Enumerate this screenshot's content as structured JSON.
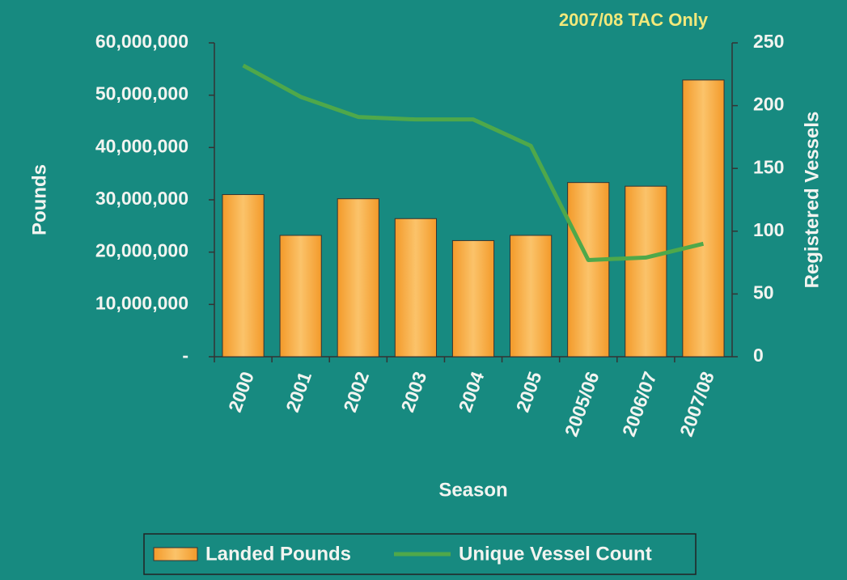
{
  "chart_data": {
    "type": "bar_line",
    "annotation": "2007/08 TAC Only",
    "ylabel": "Pounds",
    "y2label": "Registered Vessels",
    "xlabel": "Season",
    "categories": [
      "2000",
      "2001",
      "2002",
      "2003",
      "2004",
      "2005",
      "2005/06",
      "2006/07",
      "2007/08"
    ],
    "series": [
      {
        "name": "Landed Pounds",
        "type": "bar",
        "color": "#f5a030",
        "values": [
          31000000,
          23200000,
          30200000,
          26400000,
          22200000,
          23200000,
          33300000,
          32600000,
          52900000
        ]
      },
      {
        "name": "Unique Vessel Count",
        "type": "line",
        "axis": "y2",
        "color": "#4fa84a",
        "values": [
          232,
          207,
          191,
          189,
          189,
          168,
          77,
          79,
          90
        ]
      }
    ],
    "ylim": [
      0,
      60000000
    ],
    "yticks": [
      {
        "value": 0,
        "label": "-"
      },
      {
        "value": 10000000,
        "label": "10,000,000"
      },
      {
        "value": 20000000,
        "label": "20,000,000"
      },
      {
        "value": 30000000,
        "label": "30,000,000"
      },
      {
        "value": 40000000,
        "label": "40,000,000"
      },
      {
        "value": 50000000,
        "label": "50,000,000"
      },
      {
        "value": 60000000,
        "label": "60,000,000"
      }
    ],
    "y2lim": [
      0,
      250
    ],
    "y2ticks": [
      0,
      50,
      100,
      150,
      200,
      250
    ],
    "legend": "bottom"
  }
}
